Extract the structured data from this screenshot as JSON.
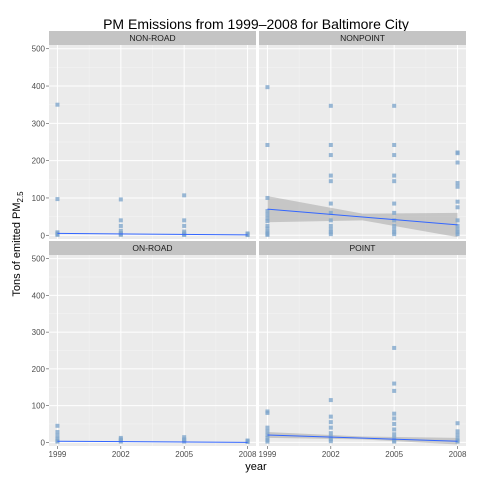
{
  "chart_data": {
    "type": "scatter",
    "title": "PM Emissions from 1999–2008 for Baltimore City",
    "xlabel": "year",
    "ylabel": "Tons of emitted PM",
    "ylabel_sub": "2.5",
    "x_ticks": [
      1999,
      2002,
      2005,
      2008
    ],
    "y_ticks": [
      0,
      100,
      200,
      300,
      400,
      500
    ],
    "xlim": [
      1998.6,
      2008.4
    ],
    "ylim": [
      -10,
      510
    ],
    "grid": true,
    "point_color": "#7fa6cc",
    "line_color": "#3366ff",
    "band_color": "#999999",
    "panel_background": "#ebebeb",
    "strip_background": "#c4c4c4",
    "panels": [
      {
        "label": "NON-ROAD",
        "points": [
          [
            1999,
            350
          ],
          [
            1999,
            97
          ],
          [
            1999,
            8
          ],
          [
            1999,
            5
          ],
          [
            1999,
            3
          ],
          [
            1999,
            1
          ],
          [
            2002,
            96
          ],
          [
            2002,
            40
          ],
          [
            2002,
            25
          ],
          [
            2002,
            12
          ],
          [
            2002,
            6
          ],
          [
            2002,
            3
          ],
          [
            2002,
            1
          ],
          [
            2005,
            107
          ],
          [
            2005,
            40
          ],
          [
            2005,
            25
          ],
          [
            2005,
            10
          ],
          [
            2005,
            5
          ],
          [
            2005,
            2
          ],
          [
            2005,
            1
          ],
          [
            2008,
            5
          ],
          [
            2008,
            3
          ],
          [
            2008,
            1
          ],
          [
            2008,
            0.5
          ]
        ],
        "trend": [
          [
            1999,
            5
          ],
          [
            2008,
            1
          ]
        ],
        "band": null
      },
      {
        "label": "NONPOINT",
        "points": [
          [
            1999,
            397
          ],
          [
            1999,
            242
          ],
          [
            1999,
            100
          ],
          [
            1999,
            65
          ],
          [
            1999,
            55
          ],
          [
            1999,
            45
          ],
          [
            1999,
            38
          ],
          [
            1999,
            25
          ],
          [
            1999,
            18
          ],
          [
            1999,
            10
          ],
          [
            1999,
            6
          ],
          [
            1999,
            3
          ],
          [
            1999,
            1
          ],
          [
            2002,
            347
          ],
          [
            2002,
            242
          ],
          [
            2002,
            215
          ],
          [
            2002,
            160
          ],
          [
            2002,
            145
          ],
          [
            2002,
            85
          ],
          [
            2002,
            60
          ],
          [
            2002,
            40
          ],
          [
            2002,
            25
          ],
          [
            2002,
            15
          ],
          [
            2002,
            8
          ],
          [
            2002,
            3
          ],
          [
            2005,
            347
          ],
          [
            2005,
            242
          ],
          [
            2005,
            215
          ],
          [
            2005,
            160
          ],
          [
            2005,
            145
          ],
          [
            2005,
            85
          ],
          [
            2005,
            60
          ],
          [
            2005,
            40
          ],
          [
            2005,
            25
          ],
          [
            2005,
            15
          ],
          [
            2005,
            8
          ],
          [
            2005,
            3
          ],
          [
            2008,
            222
          ],
          [
            2008,
            220
          ],
          [
            2008,
            195
          ],
          [
            2008,
            140
          ],
          [
            2008,
            130
          ],
          [
            2008,
            90
          ],
          [
            2008,
            75
          ],
          [
            2008,
            40
          ],
          [
            2008,
            25
          ],
          [
            2008,
            15
          ],
          [
            2008,
            8
          ],
          [
            2008,
            3
          ]
        ],
        "trend": [
          [
            1999,
            70
          ],
          [
            2008,
            28
          ]
        ],
        "band": {
          "upper": [
            [
              1999,
              105
            ],
            [
              2003.5,
              58
            ],
            [
              2008,
              60
            ]
          ],
          "lower": [
            [
              1999,
              35
            ],
            [
              2003.5,
              40
            ],
            [
              2008,
              -5
            ]
          ]
        }
      },
      {
        "label": "ON-ROAD",
        "points": [
          [
            1999,
            45
          ],
          [
            1999,
            28
          ],
          [
            1999,
            18
          ],
          [
            1999,
            10
          ],
          [
            1999,
            5
          ],
          [
            1999,
            2
          ],
          [
            2002,
            12
          ],
          [
            2002,
            8
          ],
          [
            2002,
            5
          ],
          [
            2002,
            2
          ],
          [
            2005,
            14
          ],
          [
            2005,
            8
          ],
          [
            2005,
            5
          ],
          [
            2005,
            2
          ],
          [
            2008,
            5
          ],
          [
            2008,
            3
          ],
          [
            2008,
            1
          ]
        ],
        "trend": [
          [
            1999,
            3
          ],
          [
            2008,
            0
          ]
        ],
        "band": null
      },
      {
        "label": "POINT",
        "points": [
          [
            1999,
            84
          ],
          [
            1999,
            80
          ],
          [
            1999,
            40
          ],
          [
            1999,
            30
          ],
          [
            1999,
            20
          ],
          [
            1999,
            12
          ],
          [
            1999,
            6
          ],
          [
            1999,
            2
          ],
          [
            2002,
            115
          ],
          [
            2002,
            70
          ],
          [
            2002,
            55
          ],
          [
            2002,
            40
          ],
          [
            2002,
            25
          ],
          [
            2002,
            15
          ],
          [
            2002,
            8
          ],
          [
            2002,
            3
          ],
          [
            2005,
            257
          ],
          [
            2005,
            160
          ],
          [
            2005,
            140
          ],
          [
            2005,
            78
          ],
          [
            2005,
            65
          ],
          [
            2005,
            50
          ],
          [
            2005,
            35
          ],
          [
            2005,
            22
          ],
          [
            2005,
            12
          ],
          [
            2005,
            5
          ],
          [
            2005,
            2
          ],
          [
            2008,
            52
          ],
          [
            2008,
            30
          ],
          [
            2008,
            20
          ],
          [
            2008,
            10
          ],
          [
            2008,
            5
          ],
          [
            2008,
            2
          ]
        ],
        "trend": [
          [
            1999,
            20
          ],
          [
            2008,
            3
          ]
        ],
        "band": {
          "upper": [
            [
              1999,
              28
            ],
            [
              2003.5,
              16
            ],
            [
              2008,
              12
            ]
          ],
          "lower": [
            [
              1999,
              12
            ],
            [
              2003.5,
              8
            ],
            [
              2008,
              -6
            ]
          ]
        }
      }
    ]
  }
}
